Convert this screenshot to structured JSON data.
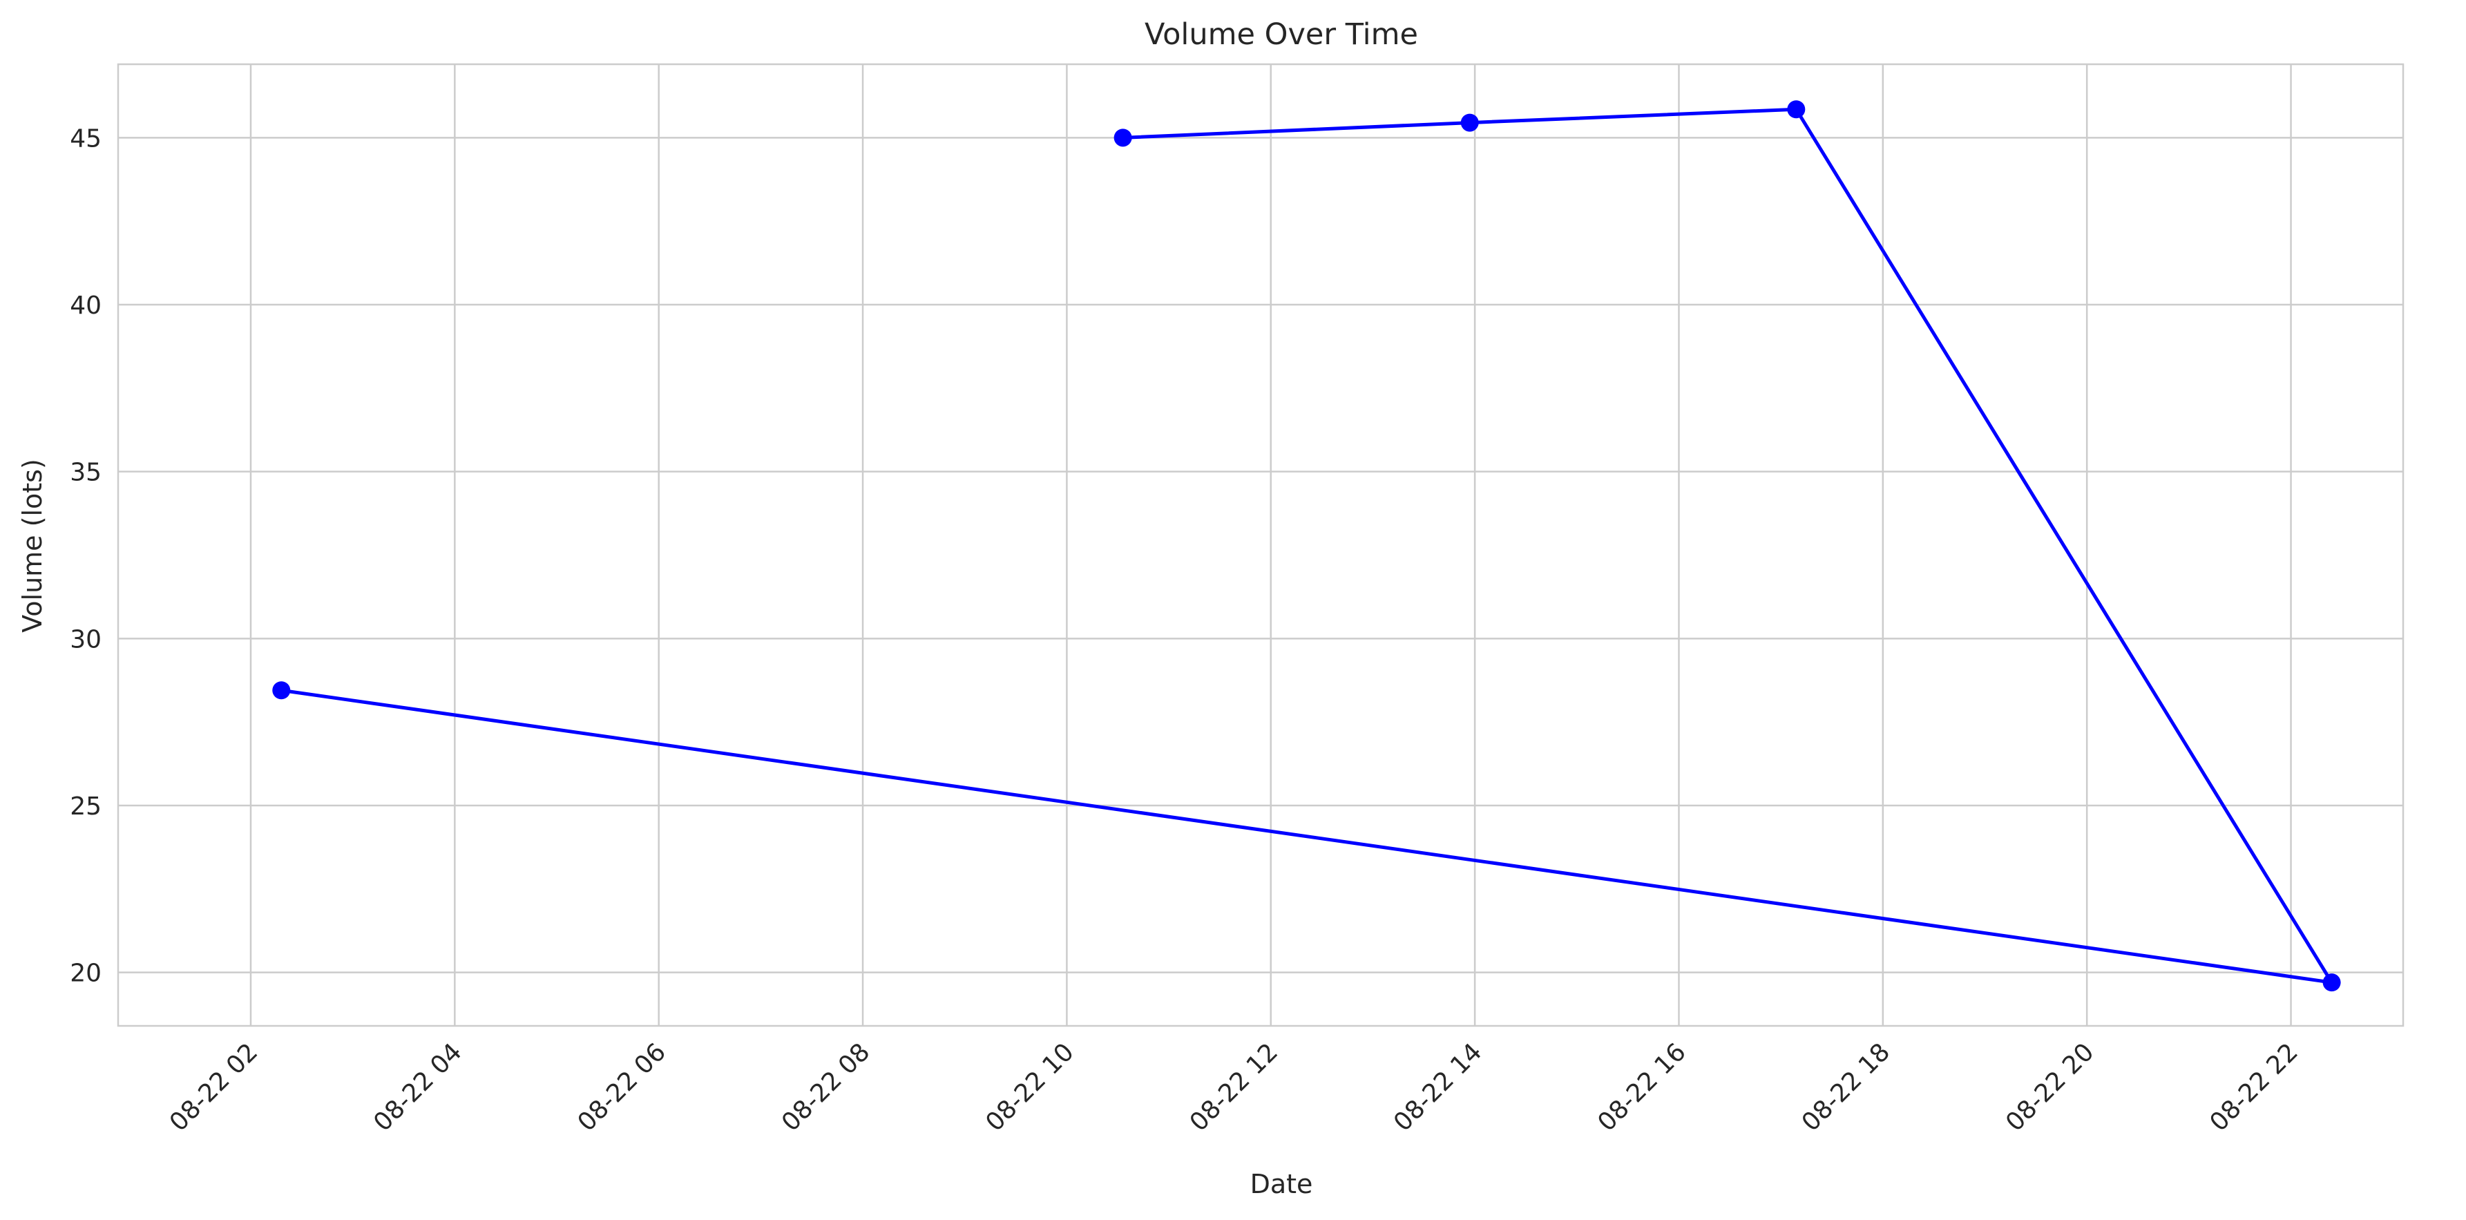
{
  "chart_data": {
    "type": "line",
    "title": "Volume Over Time",
    "xlabel": "Date",
    "ylabel": "Volume (lots)",
    "x_tick_labels": [
      "08-22 02",
      "08-22 04",
      "08-22 06",
      "08-22 08",
      "08-22 10",
      "08-22 12",
      "08-22 14",
      "08-22 16",
      "08-22 18",
      "08-22 20",
      "08-22 22"
    ],
    "x_tick_hours": [
      2,
      4,
      6,
      8,
      10,
      12,
      14,
      16,
      18,
      20,
      22
    ],
    "y_ticks": [
      20,
      25,
      30,
      35,
      40,
      45
    ],
    "xlim_hours": [
      0.7,
      23.1
    ],
    "ylim": [
      18.4,
      47.2
    ],
    "grid": true,
    "color": "#0000ff",
    "series": [
      {
        "x_hours": [
          10.55,
          13.95,
          17.15,
          22.4,
          2.3
        ],
        "values": [
          45.0,
          45.45,
          45.85,
          19.7,
          28.45
        ]
      }
    ]
  }
}
